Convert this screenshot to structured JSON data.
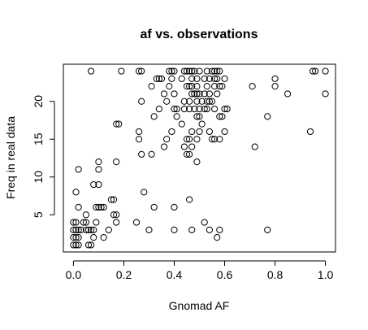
{
  "chart_data": {
    "type": "scatter",
    "title": "af vs. observations",
    "xlabel": "Gnomad AF",
    "ylabel": "Freq in real data",
    "xlim": [
      -0.04,
      1.04
    ],
    "ylim": [
      0.08,
      24.92
    ],
    "xticks": [
      "0.0",
      "0.2",
      "0.4",
      "0.6",
      "0.8",
      "1.0"
    ],
    "yticks": [
      "5",
      "10",
      "15",
      "20"
    ],
    "grid": false,
    "legend": "none",
    "marker": "open-circle",
    "points": [
      [
        0.07,
        24
      ],
      [
        0.19,
        24
      ],
      [
        0.26,
        24
      ],
      [
        0.27,
        24
      ],
      [
        0.38,
        24
      ],
      [
        0.39,
        24
      ],
      [
        0.4,
        24
      ],
      [
        0.44,
        24
      ],
      [
        0.45,
        24
      ],
      [
        0.46,
        24
      ],
      [
        0.47,
        24
      ],
      [
        0.48,
        24
      ],
      [
        0.5,
        24
      ],
      [
        0.53,
        24
      ],
      [
        0.55,
        24
      ],
      [
        0.56,
        24
      ],
      [
        0.57,
        24
      ],
      [
        0.58,
        24
      ],
      [
        0.95,
        24
      ],
      [
        0.96,
        24
      ],
      [
        1.0,
        24
      ],
      [
        0.33,
        23
      ],
      [
        0.34,
        23
      ],
      [
        0.35,
        23
      ],
      [
        0.39,
        23
      ],
      [
        0.43,
        23
      ],
      [
        0.47,
        23
      ],
      [
        0.49,
        23
      ],
      [
        0.52,
        23
      ],
      [
        0.54,
        23
      ],
      [
        0.56,
        23
      ],
      [
        0.57,
        23
      ],
      [
        0.6,
        23
      ],
      [
        0.8,
        23
      ],
      [
        0.31,
        22
      ],
      [
        0.38,
        22
      ],
      [
        0.45,
        22
      ],
      [
        0.46,
        22
      ],
      [
        0.47,
        22
      ],
      [
        0.49,
        22
      ],
      [
        0.53,
        22
      ],
      [
        0.56,
        22
      ],
      [
        0.58,
        22
      ],
      [
        0.59,
        22
      ],
      [
        0.71,
        22
      ],
      [
        0.8,
        22
      ],
      [
        0.36,
        21
      ],
      [
        0.4,
        21
      ],
      [
        0.47,
        21
      ],
      [
        0.48,
        21
      ],
      [
        0.49,
        21
      ],
      [
        0.5,
        21
      ],
      [
        0.52,
        21
      ],
      [
        0.54,
        21
      ],
      [
        0.57,
        21
      ],
      [
        0.85,
        21
      ],
      [
        1.0,
        21
      ],
      [
        0.27,
        20
      ],
      [
        0.37,
        20
      ],
      [
        0.44,
        20
      ],
      [
        0.46,
        20
      ],
      [
        0.49,
        20
      ],
      [
        0.51,
        20
      ],
      [
        0.53,
        20
      ],
      [
        0.54,
        20
      ],
      [
        0.55,
        20
      ],
      [
        0.34,
        19
      ],
      [
        0.4,
        19
      ],
      [
        0.41,
        19
      ],
      [
        0.44,
        19
      ],
      [
        0.46,
        19
      ],
      [
        0.48,
        19
      ],
      [
        0.5,
        19
      ],
      [
        0.52,
        19
      ],
      [
        0.53,
        19
      ],
      [
        0.56,
        19
      ],
      [
        0.6,
        19
      ],
      [
        0.61,
        19
      ],
      [
        0.32,
        18
      ],
      [
        0.41,
        18
      ],
      [
        0.49,
        18
      ],
      [
        0.5,
        18
      ],
      [
        0.58,
        18
      ],
      [
        0.59,
        18
      ],
      [
        0.77,
        18
      ],
      [
        0.17,
        17
      ],
      [
        0.18,
        17
      ],
      [
        0.43,
        17
      ],
      [
        0.51,
        17
      ],
      [
        0.26,
        16
      ],
      [
        0.39,
        16
      ],
      [
        0.47,
        16
      ],
      [
        0.5,
        16
      ],
      [
        0.54,
        16
      ],
      [
        0.6,
        16
      ],
      [
        0.94,
        16
      ],
      [
        0.26,
        15
      ],
      [
        0.37,
        15
      ],
      [
        0.45,
        15
      ],
      [
        0.46,
        15
      ],
      [
        0.49,
        15
      ],
      [
        0.55,
        15
      ],
      [
        0.56,
        15
      ],
      [
        0.58,
        15
      ],
      [
        0.36,
        14
      ],
      [
        0.44,
        14
      ],
      [
        0.47,
        14
      ],
      [
        0.72,
        14
      ],
      [
        0.27,
        13
      ],
      [
        0.31,
        13
      ],
      [
        0.45,
        13
      ],
      [
        0.46,
        13
      ],
      [
        0.17,
        12
      ],
      [
        0.49,
        12
      ],
      [
        0.1,
        12
      ],
      [
        0.02,
        11
      ],
      [
        0.1,
        11
      ],
      [
        0.08,
        9
      ],
      [
        0.1,
        9
      ],
      [
        0.01,
        8
      ],
      [
        0.28,
        8
      ],
      [
        0.15,
        7
      ],
      [
        0.16,
        7
      ],
      [
        0.46,
        7
      ],
      [
        0.02,
        6
      ],
      [
        0.09,
        6
      ],
      [
        0.1,
        6
      ],
      [
        0.11,
        6
      ],
      [
        0.12,
        6
      ],
      [
        0.32,
        6
      ],
      [
        0.4,
        6
      ],
      [
        0.05,
        5
      ],
      [
        0.16,
        5
      ],
      [
        0.17,
        5
      ],
      [
        0.0,
        4
      ],
      [
        0.01,
        4
      ],
      [
        0.04,
        4
      ],
      [
        0.05,
        4
      ],
      [
        0.09,
        4
      ],
      [
        0.17,
        4
      ],
      [
        0.25,
        4
      ],
      [
        0.52,
        4
      ],
      [
        0.0,
        3
      ],
      [
        0.01,
        3
      ],
      [
        0.02,
        3
      ],
      [
        0.03,
        3
      ],
      [
        0.05,
        3
      ],
      [
        0.06,
        3
      ],
      [
        0.07,
        3
      ],
      [
        0.08,
        3
      ],
      [
        0.14,
        3
      ],
      [
        0.3,
        3
      ],
      [
        0.4,
        3
      ],
      [
        0.47,
        3
      ],
      [
        0.54,
        3
      ],
      [
        0.58,
        3
      ],
      [
        0.77,
        3
      ],
      [
        0.0,
        2
      ],
      [
        0.01,
        2
      ],
      [
        0.02,
        2
      ],
      [
        0.08,
        2
      ],
      [
        0.12,
        2
      ],
      [
        0.57,
        2
      ],
      [
        0.0,
        1
      ],
      [
        0.01,
        1
      ],
      [
        0.02,
        1
      ],
      [
        0.06,
        1
      ],
      [
        0.07,
        1
      ]
    ]
  }
}
